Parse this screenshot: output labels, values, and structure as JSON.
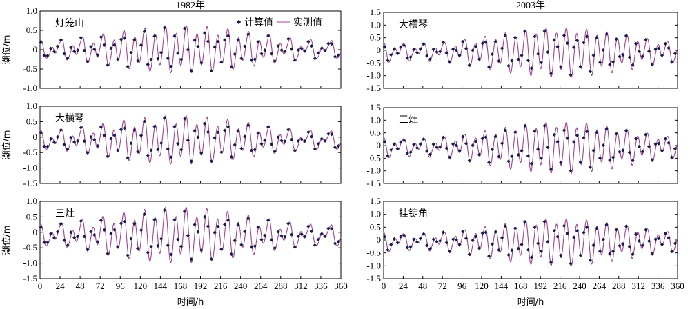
{
  "chart_data": [
    {
      "type": "line",
      "panel": "1982-1",
      "column_title": "1982年",
      "station": "灯笼山",
      "ylabel": "潮位/m",
      "xlabel": "",
      "ylim": [
        -1.0,
        1.0
      ],
      "yticks": [
        "1.0",
        "0.5",
        "0",
        "-0.5",
        "-1.0"
      ],
      "xlim": [
        0,
        360
      ],
      "legend": {
        "calc": "计算值",
        "meas": "实测值",
        "placement": "top-right"
      },
      "tide": {
        "amp": 0.48,
        "mean": 0,
        "offset": 0,
        "spring_center": 170,
        "diurnal": 0.14,
        "meas_gain": 1.06,
        "meas_lag": 1.2,
        "calc_step": 4
      }
    },
    {
      "type": "line",
      "panel": "1982-2",
      "station": "大横琴",
      "ylabel": "潮位/m",
      "xlabel": "",
      "ylim": [
        -1.5,
        1.0
      ],
      "yticks": [
        "1.0",
        "0.5",
        "0",
        "-0.5",
        "-1.0",
        "-1.5"
      ],
      "xlim": [
        0,
        360
      ],
      "tide": {
        "amp": 0.6,
        "mean": -0.1,
        "offset": 0,
        "spring_center": 165,
        "diurnal": 0.18,
        "meas_gain": 1.08,
        "meas_lag": 1.0,
        "calc_step": 4
      }
    },
    {
      "type": "line",
      "panel": "1982-3",
      "station": "三灶",
      "ylabel": "潮位/m",
      "xlabel": "时间/h",
      "ylim": [
        -1.5,
        1.0
      ],
      "yticks": [
        "1.0",
        "0.5",
        "0",
        "-0.5",
        "-1.0",
        "-1.5"
      ],
      "xlim": [
        0,
        360
      ],
      "xticks": [
        "0",
        "24",
        "48",
        "72",
        "96",
        "120",
        "144",
        "168",
        "192",
        "216",
        "240",
        "264",
        "288",
        "312",
        "336",
        "360"
      ],
      "tide": {
        "amp": 0.68,
        "mean": -0.1,
        "offset": 0,
        "spring_center": 165,
        "diurnal": 0.2,
        "meas_gain": 1.1,
        "meas_lag": 1.0,
        "calc_step": 4
      }
    },
    {
      "type": "line",
      "panel": "2003-1",
      "column_title": "2003年",
      "station": "大横琴",
      "ylabel": "",
      "xlabel": "",
      "ylim": [
        -1.5,
        1.5
      ],
      "yticks": [
        "1.5",
        "1.0",
        "0.5",
        "0",
        "-0.5",
        "-1.0",
        "-1.5"
      ],
      "xlim": [
        0,
        360
      ],
      "tide": {
        "amp": 0.78,
        "mean": -0.05,
        "offset": 0.4,
        "spring_center": 215,
        "diurnal": 0.18,
        "meas_gain": 1.08,
        "meas_lag": 1.0,
        "calc_step": 4
      }
    },
    {
      "type": "line",
      "panel": "2003-2",
      "station": "三灶",
      "ylabel": "",
      "xlabel": "",
      "ylim": [
        -1.5,
        1.5
      ],
      "yticks": [
        "1.5",
        "1.0",
        "0.5",
        "0",
        "-0.5",
        "-1.0",
        "-1.5"
      ],
      "xlim": [
        0,
        360
      ],
      "tide": {
        "amp": 0.8,
        "mean": -0.05,
        "offset": 0.4,
        "spring_center": 215,
        "diurnal": 0.18,
        "meas_gain": 1.1,
        "meas_lag": 1.0,
        "calc_step": 4
      }
    },
    {
      "type": "line",
      "panel": "2003-3",
      "station": "挂锭角",
      "ylabel": "",
      "xlabel": "时间/h",
      "ylim": [
        -1.5,
        1.5
      ],
      "yticks": [
        "1.5",
        "1.0",
        "0.5",
        "0",
        "-0.5",
        "-1.0",
        "-1.5"
      ],
      "xlim": [
        0,
        360
      ],
      "xticks": [
        "0",
        "24",
        "48",
        "72",
        "96",
        "120",
        "144",
        "168",
        "192",
        "216",
        "240",
        "264",
        "288",
        "312",
        "336",
        "360"
      ],
      "tide": {
        "amp": 0.72,
        "mean": -0.05,
        "offset": 0.4,
        "spring_center": 215,
        "diurnal": 0.18,
        "meas_gain": 1.08,
        "meas_lag": 1.0,
        "calc_step": 4
      }
    }
  ]
}
